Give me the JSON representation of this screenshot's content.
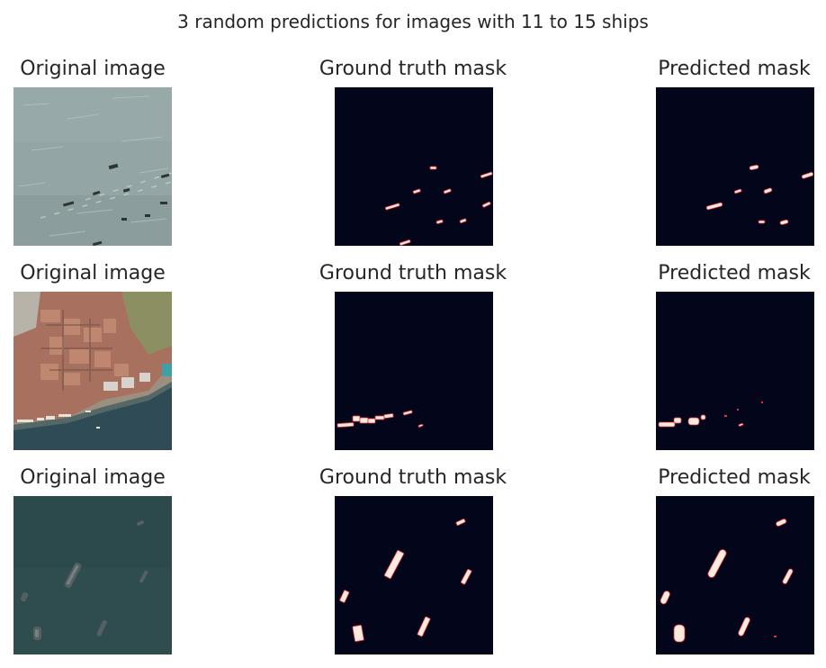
{
  "figure": {
    "title": "3 random predictions for images with 11 to 15 ships"
  },
  "rows": [
    {
      "original": {
        "title": "Original image"
      },
      "ground_truth": {
        "title": "Ground truth mask"
      },
      "predicted": {
        "title": "Predicted mask"
      }
    },
    {
      "original": {
        "title": "Original image"
      },
      "ground_truth": {
        "title": "Ground truth mask"
      },
      "predicted": {
        "title": "Predicted mask"
      }
    },
    {
      "original": {
        "title": "Original image"
      },
      "ground_truth": {
        "title": "Ground truth mask"
      },
      "predicted": {
        "title": "Predicted mask"
      }
    }
  ],
  "colors": {
    "mask_background": "#03051a",
    "mask_foreground": "#faebdd",
    "mask_edge": "#e13342",
    "sea_grey": "#8fa1a0",
    "sea_teal": "#2f4c4d",
    "city_roof": "#a9665a"
  }
}
